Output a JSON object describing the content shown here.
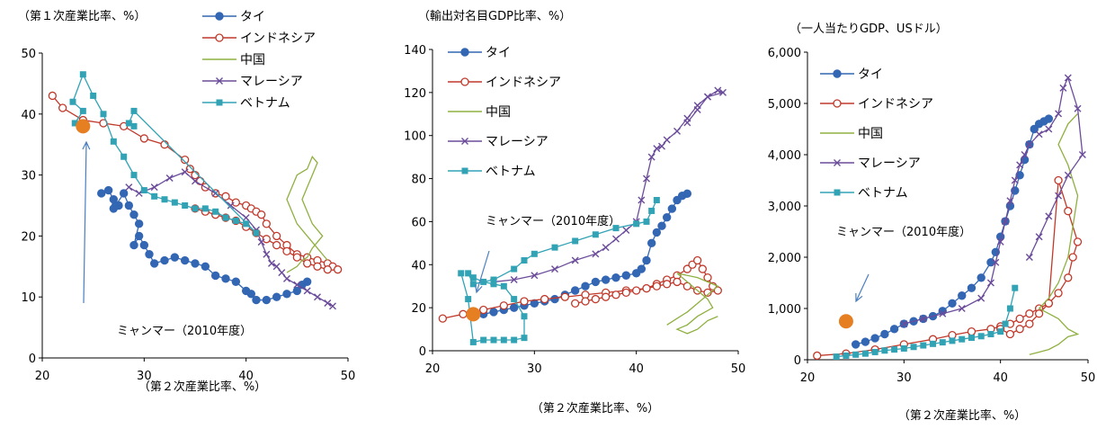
{
  "series_styles": {
    "thai": {
      "color": "#3366b3",
      "marker": "circle-filled"
    },
    "indonesia": {
      "color": "#c0392b",
      "marker": "circle-open"
    },
    "china": {
      "color": "#8fb040",
      "marker": "none"
    },
    "malaysia": {
      "color": "#6b4c9a",
      "marker": "x"
    },
    "vietnam": {
      "color": "#31a3b5",
      "marker": "square-filled"
    },
    "myanmar": {
      "color": "#e67e22",
      "marker": "big-circle"
    }
  },
  "chart_data": [
    {
      "type": "scatter",
      "title": "（第１次産業比率、%）",
      "xlabel": "（第２次産業比率、%）",
      "ylabel": "（第１次産業比率、%）",
      "xlim": [
        20,
        50
      ],
      "ylim": [
        0,
        50
      ],
      "xticks": [
        "20",
        "30",
        "40",
        "50"
      ],
      "yticks": [
        "0",
        "10",
        "20",
        "30",
        "40",
        "50"
      ],
      "legend_position": "top-center",
      "legend": [
        "タイ",
        "インドネシア",
        "中国",
        "マレーシア",
        "ベトナム"
      ],
      "annotation": "ミャンマー（2010年度）",
      "series": [
        {
          "key": "thai",
          "x": [
            25.8,
            26.5,
            27,
            27.5,
            27,
            27.2,
            28,
            28.5,
            29,
            29.5,
            29,
            29.5,
            30,
            30.5,
            31,
            32,
            33,
            34,
            35,
            36,
            37,
            38,
            39,
            40,
            40.5,
            41,
            42,
            43,
            44,
            45,
            45.5,
            46
          ],
          "y": [
            27,
            27.5,
            26,
            25,
            24.5,
            25,
            27,
            25,
            23.5,
            22,
            18.5,
            20,
            18.5,
            17,
            15.5,
            16,
            16.5,
            16,
            15.5,
            15,
            13.5,
            13,
            12.5,
            11,
            10.5,
            9.5,
            9.5,
            10,
            10.5,
            11,
            12,
            12.5
          ]
        },
        {
          "key": "indonesia",
          "x": [
            21,
            22,
            24,
            26,
            28,
            30,
            32,
            34,
            34.5,
            35,
            35.5,
            36,
            37,
            38,
            39,
            40,
            40.5,
            41,
            41.5,
            42,
            43,
            44,
            45,
            46,
            47,
            48,
            48.5,
            49,
            48,
            47,
            46,
            45,
            44,
            43,
            42,
            41,
            40,
            39,
            38,
            37,
            36,
            35
          ],
          "y": [
            43,
            41,
            39,
            38.5,
            38,
            36,
            35,
            32.5,
            31,
            30,
            29,
            28,
            27,
            26.5,
            25.5,
            25,
            24.5,
            24,
            23.5,
            22,
            20,
            18.5,
            17,
            16.5,
            16,
            15.5,
            15,
            14.5,
            14.5,
            15,
            15.5,
            16.5,
            17.5,
            18.5,
            19.5,
            20.5,
            21.5,
            22.5,
            23,
            23.5,
            24,
            24.5
          ]
        },
        {
          "key": "china",
          "x": [
            44,
            45,
            45.5,
            46,
            46.5,
            47,
            47.5,
            46.5,
            46,
            45.5,
            46,
            46.5,
            47,
            46.5,
            46,
            45,
            44.5,
            44,
            44.5,
            45,
            46,
            46.5,
            47,
            47.5,
            48
          ],
          "y": [
            14,
            15,
            16,
            16.5,
            18,
            19,
            20,
            22,
            24,
            26,
            28,
            30,
            32,
            33,
            31,
            30,
            28,
            26,
            24,
            22,
            20,
            19,
            18,
            17,
            16
          ]
        },
        {
          "key": "malaysia",
          "x": [
            28.5,
            29.5,
            31,
            32.5,
            34,
            35,
            37,
            38.5,
            40,
            41,
            41.5,
            42,
            42.5,
            43,
            43.5,
            44,
            45,
            46,
            47,
            48,
            48.5
          ],
          "y": [
            28,
            27,
            28,
            29.5,
            30.5,
            29,
            27,
            25,
            23,
            21,
            19,
            17,
            15.5,
            15,
            14,
            13,
            12,
            11,
            10,
            9,
            8.5
          ]
        },
        {
          "key": "vietnam",
          "x": [
            23.2,
            24,
            23,
            24,
            25,
            26,
            27,
            28,
            29,
            30,
            31,
            32,
            33,
            34,
            35,
            36,
            37,
            38,
            39,
            40,
            41,
            29,
            28.5,
            29
          ],
          "y": [
            38.5,
            40.5,
            42,
            46.5,
            43,
            40,
            35.5,
            33,
            30,
            27.5,
            26.5,
            26,
            25.5,
            25,
            24.5,
            24.5,
            24,
            23,
            22.5,
            22,
            20.5,
            40.5,
            38.5,
            38
          ]
        }
      ],
      "myanmar": {
        "x": 24,
        "y": 38
      }
    },
    {
      "type": "scatter",
      "title": "（輸出対名目GDP比率、%）",
      "xlabel": "（第２次産業比率、%）",
      "ylabel": "（輸出対名目GDP比率、%）",
      "xlim": [
        20,
        50
      ],
      "ylim": [
        0,
        140
      ],
      "xticks": [
        "20",
        "30",
        "40",
        "50"
      ],
      "yticks": [
        "0",
        "20",
        "40",
        "60",
        "80",
        "100",
        "120",
        "140"
      ],
      "legend_position": "top-left",
      "legend": [
        "タイ",
        "インドネシア",
        "中国",
        "マレーシア",
        "ベトナム"
      ],
      "annotation": "ミャンマー（2010年度）",
      "series": [
        {
          "key": "thai",
          "x": [
            25,
            26,
            27,
            28,
            29,
            30,
            31,
            32,
            33,
            34,
            35,
            36,
            37,
            38,
            39,
            40,
            40.5,
            41,
            41.5,
            42,
            42.5,
            43,
            43.5,
            44,
            44.5,
            45
          ],
          "y": [
            17,
            18,
            19,
            20,
            21,
            22,
            23,
            24,
            26,
            28,
            30,
            32,
            33,
            34,
            35,
            36,
            38,
            42,
            50,
            55,
            58,
            62,
            66,
            70,
            72,
            73
          ]
        },
        {
          "key": "indonesia",
          "x": [
            21,
            23,
            25,
            27,
            29,
            31,
            33,
            35,
            37,
            39,
            41,
            42,
            43,
            44,
            45,
            45.5,
            46,
            46.5,
            47,
            47.5,
            48,
            47,
            46,
            45,
            44,
            43,
            42,
            41,
            40,
            39,
            38,
            37,
            36,
            35,
            34
          ],
          "y": [
            15,
            17,
            19,
            21,
            23,
            24,
            25,
            26,
            27,
            28,
            29,
            31,
            33,
            35,
            38,
            40,
            42,
            38,
            34,
            30,
            28,
            27,
            28,
            30,
            32,
            31,
            30,
            29,
            28,
            27,
            26,
            25,
            24,
            23,
            22
          ]
        },
        {
          "key": "china",
          "x": [
            43,
            44,
            45,
            46,
            47,
            48,
            46,
            44,
            45,
            46,
            47,
            47.5,
            46,
            45,
            44,
            45,
            46,
            47,
            48
          ],
          "y": [
            12,
            15,
            18,
            22,
            26,
            30,
            34,
            36,
            32,
            28,
            24,
            20,
            16,
            12,
            10,
            8,
            10,
            14,
            16
          ]
        },
        {
          "key": "malaysia",
          "x": [
            26,
            28,
            30,
            32,
            34,
            36,
            37,
            38,
            39,
            40,
            40.5,
            41,
            41.5,
            42,
            42.5,
            43,
            44,
            45,
            46,
            47,
            48,
            48.5,
            47,
            46,
            45
          ],
          "y": [
            32,
            33,
            35,
            38,
            42,
            45,
            48,
            52,
            56,
            60,
            70,
            80,
            90,
            94,
            95,
            98,
            102,
            108,
            114,
            118,
            121,
            120,
            118,
            112,
            106
          ]
        },
        {
          "key": "vietnam",
          "x": [
            22.8,
            23.5,
            24,
            25,
            26,
            27,
            28,
            29,
            29,
            28,
            27,
            26,
            25,
            24,
            23.5,
            24,
            26,
            28,
            29,
            30,
            32,
            34,
            36,
            38,
            40,
            41,
            41.5,
            42
          ],
          "y": [
            36,
            24,
            4,
            5,
            5,
            5,
            5,
            6,
            16,
            24,
            30,
            31,
            32,
            34,
            36,
            31,
            33,
            38,
            42,
            45,
            48,
            51,
            54,
            57,
            59,
            60,
            65,
            70
          ]
        }
      ],
      "myanmar": {
        "x": 24,
        "y": 17
      }
    },
    {
      "type": "scatter",
      "title": "（一人当たりGDP、USドル）",
      "xlabel": "（第２次産業比率、%）",
      "ylabel": "（一人当たりGDP、USドル）",
      "xlim": [
        20,
        50
      ],
      "ylim": [
        0,
        6000
      ],
      "xticks": [
        "20",
        "30",
        "40",
        "50"
      ],
      "yticks": [
        "0",
        "1,000",
        "2,000",
        "3,000",
        "4,000",
        "5,000",
        "6,000"
      ],
      "legend_position": "top-left",
      "legend": [
        "タイ",
        "インドネシア",
        "中国",
        "マレーシア",
        "ベトナム"
      ],
      "annotation": "ミャンマー（2010年度）",
      "series": [
        {
          "key": "thai",
          "x": [
            25,
            26,
            27,
            28,
            29,
            30,
            31,
            32,
            33,
            34,
            35,
            36,
            37,
            38,
            39,
            39.5,
            40,
            40.5,
            41,
            41.5,
            42,
            42.5,
            43,
            43.5,
            44,
            44.5,
            45
          ],
          "y": [
            300,
            350,
            420,
            500,
            600,
            700,
            750,
            800,
            850,
            950,
            1100,
            1250,
            1400,
            1600,
            1900,
            2100,
            2400,
            2700,
            3000,
            3300,
            3600,
            3900,
            4200,
            4500,
            4600,
            4650,
            4700
          ]
        },
        {
          "key": "indonesia",
          "x": [
            21,
            24,
            27,
            30,
            33,
            35,
            37,
            39,
            40,
            41,
            42,
            43,
            44,
            45,
            46,
            47,
            47.5,
            48,
            47,
            46,
            45,
            44,
            43,
            42,
            41,
            40
          ],
          "y": [
            80,
            120,
            200,
            300,
            400,
            480,
            550,
            600,
            650,
            700,
            800,
            900,
            1000,
            1100,
            1300,
            1600,
            2000,
            2300,
            2900,
            3500,
            1100,
            900,
            700,
            600,
            500,
            600
          ]
        },
        {
          "key": "china",
          "x": [
            43,
            44,
            45,
            46,
            47,
            48,
            47,
            46,
            45,
            44,
            45,
            46,
            47,
            47.5,
            48,
            47,
            46,
            47,
            48
          ],
          "y": [
            100,
            150,
            200,
            300,
            450,
            500,
            600,
            800,
            900,
            1000,
            1200,
            1500,
            2000,
            2600,
            3200,
            3800,
            4200,
            4600,
            4800
          ]
        },
        {
          "key": "malaysia",
          "x": [
            30,
            32,
            34,
            36,
            38,
            39,
            39.5,
            40,
            40.5,
            41,
            41.5,
            42,
            42.5,
            43,
            44,
            45,
            46,
            46.5,
            47,
            48,
            48.5,
            47,
            46,
            45,
            44,
            43
          ],
          "y": [
            700,
            800,
            900,
            1000,
            1200,
            1500,
            1900,
            2300,
            2700,
            3100,
            3500,
            3800,
            4000,
            4200,
            4400,
            4500,
            4800,
            5300,
            5500,
            4900,
            4000,
            3600,
            3200,
            2800,
            2400,
            2000
          ]
        },
        {
          "key": "vietnam",
          "x": [
            23,
            24,
            25,
            26,
            27,
            28,
            29,
            30,
            31,
            32,
            33,
            34,
            35,
            36,
            37,
            38,
            39,
            40,
            40.5,
            41,
            41.5
          ],
          "y": [
            60,
            80,
            100,
            120,
            150,
            180,
            200,
            220,
            250,
            280,
            310,
            340,
            370,
            400,
            430,
            460,
            500,
            550,
            700,
            1000,
            1400
          ]
        }
      ],
      "myanmar": {
        "x": 24,
        "y": 750
      }
    }
  ]
}
